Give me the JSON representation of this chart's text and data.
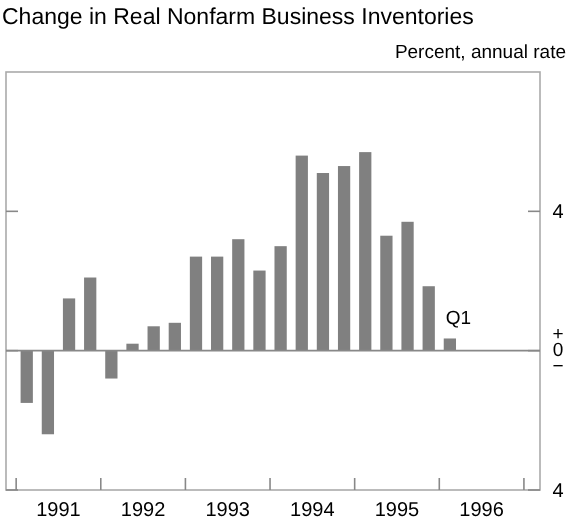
{
  "chart_data": {
    "type": "bar",
    "title": "Change in Real Nonfarm Business Inventories",
    "subtitle": "Percent, annual rate",
    "x": [
      1991.125,
      1991.375,
      1991.625,
      1991.875,
      1992.125,
      1992.375,
      1992.625,
      1992.875,
      1993.125,
      1993.375,
      1993.625,
      1993.875,
      1994.125,
      1994.375,
      1994.625,
      1994.875,
      1995.125,
      1995.375,
      1995.625,
      1995.875,
      1996.125
    ],
    "values": [
      -1.5,
      -2.4,
      1.5,
      2.1,
      -0.8,
      0.2,
      0.7,
      0.8,
      2.7,
      2.7,
      3.2,
      2.3,
      3.0,
      5.6,
      5.1,
      5.3,
      5.7,
      3.3,
      3.7,
      1.85,
      0.35
    ],
    "color": "#808080",
    "xlim": [
      1990.88,
      1997.19
    ],
    "xticks": [
      {
        "value": 1991,
        "label": null
      },
      {
        "value": 1991.5,
        "label": "1991"
      },
      {
        "value": 1992,
        "label": null
      },
      {
        "value": 1992.5,
        "label": "1992"
      },
      {
        "value": 1993,
        "label": null
      },
      {
        "value": 1993.5,
        "label": "1993"
      },
      {
        "value": 1994,
        "label": null
      },
      {
        "value": 1994.5,
        "label": "1994"
      },
      {
        "value": 1995,
        "label": null
      },
      {
        "value": 1995.5,
        "label": "1995"
      },
      {
        "value": 1996,
        "label": null
      },
      {
        "value": 1996.5,
        "label": "1996"
      },
      {
        "value": 1997,
        "label": null
      }
    ],
    "ylim": [
      -4,
      8
    ],
    "yticks": [
      {
        "value": -4,
        "label": "4"
      },
      {
        "value": 0,
        "label": "+0−"
      },
      4
    ],
    "ref_lines": [
      {
        "axis": "y",
        "value": 0
      }
    ],
    "annotations": [
      {
        "text": "Q1",
        "x": 1996.125,
        "y": 0.35
      }
    ],
    "grid": false
  }
}
